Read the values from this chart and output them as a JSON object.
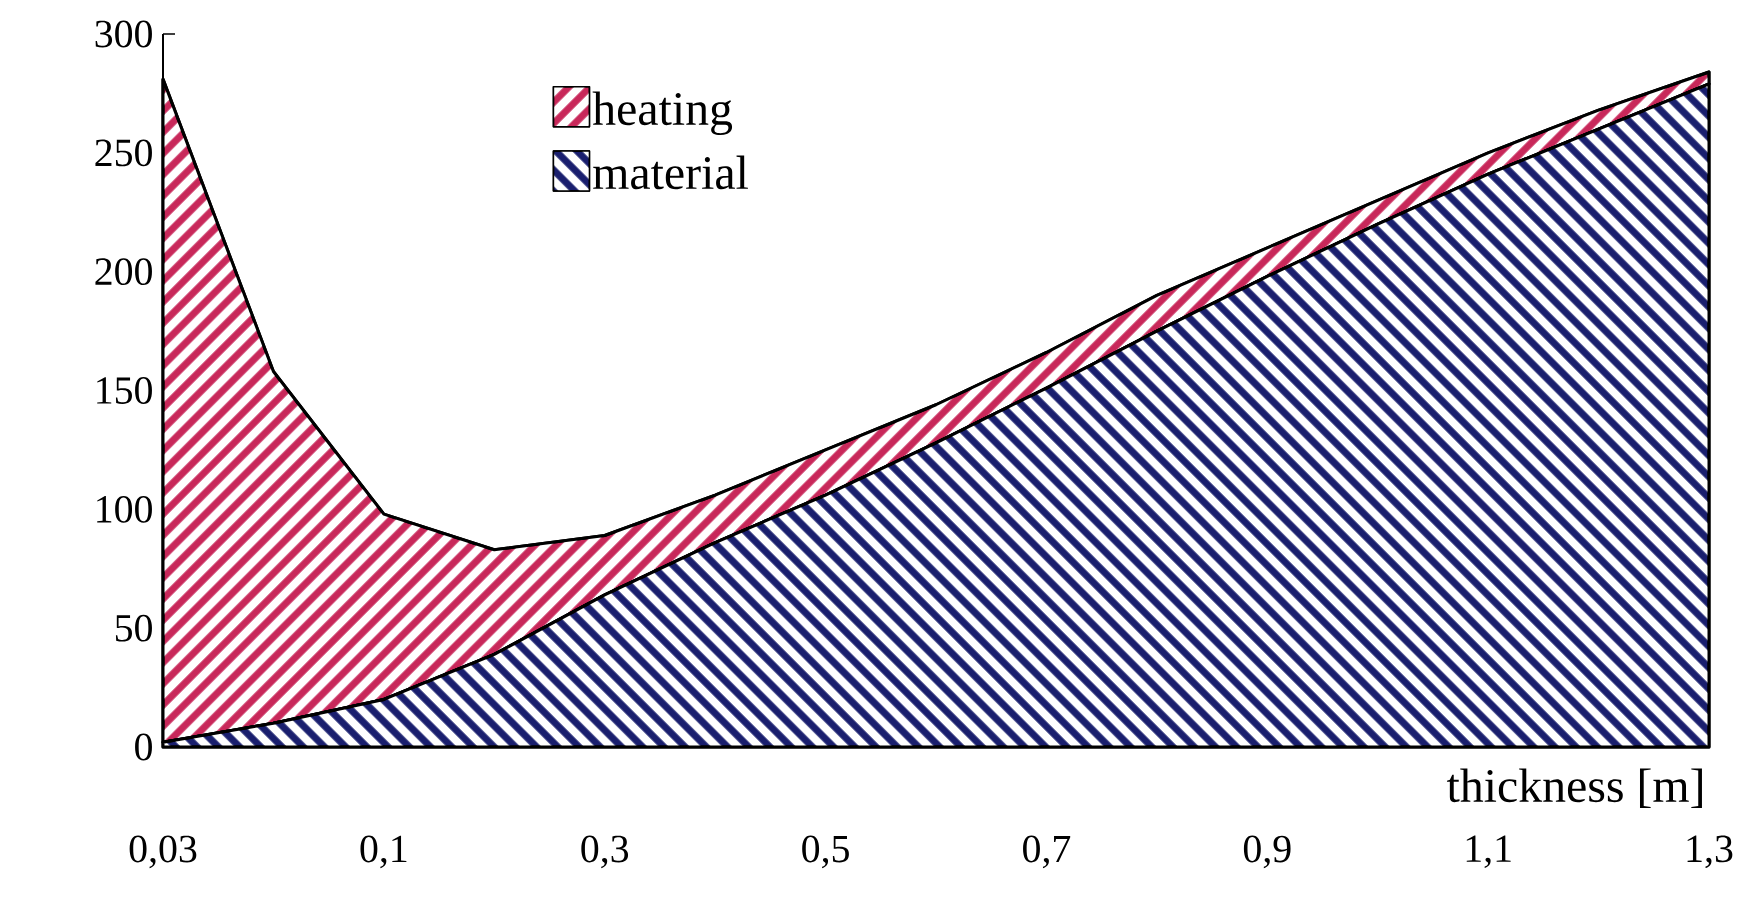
{
  "chart_data": {
    "type": "area",
    "stacked": true,
    "xlabel": "thickness [m]",
    "categories": [
      "0,03",
      null,
      "0,1",
      null,
      "0,3",
      null,
      "0,5",
      null,
      "0,7",
      null,
      "0,9",
      null,
      "1,1",
      null,
      "1,3"
    ],
    "series": [
      {
        "name": "material",
        "color": "#1a1f6e",
        "values": [
          2,
          10,
          20,
          39,
          64,
          86,
          106,
          128,
          151,
          175,
          198,
          220,
          241,
          260,
          279
        ]
      },
      {
        "name": "heating",
        "color": "#c8285a",
        "values": [
          279,
          148,
          78,
          44,
          25,
          20,
          19,
          16,
          15,
          15,
          12,
          10,
          9,
          8,
          5
        ]
      }
    ],
    "ylim": [
      0,
      300
    ],
    "yticks": [
      0,
      50,
      100,
      150,
      200,
      250,
      300
    ],
    "legend": "top left"
  }
}
